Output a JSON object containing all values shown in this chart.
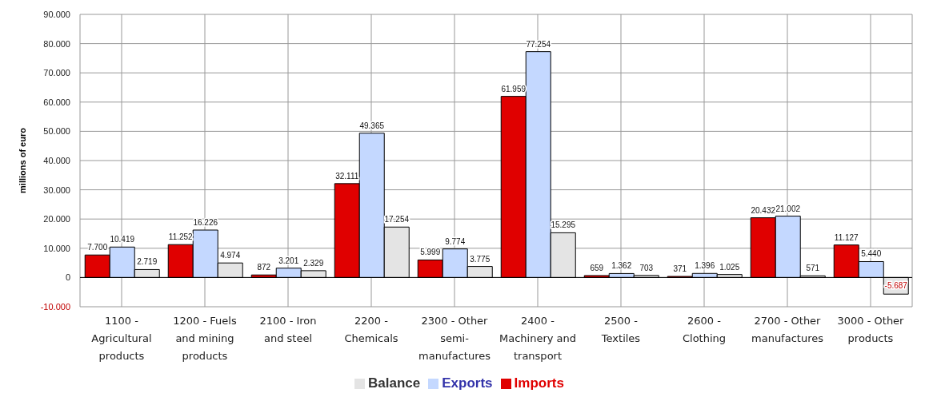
{
  "chart_data": {
    "type": "bar",
    "ylabel": "millions of euro",
    "categories": [
      "1100 - Agricultural products",
      "1200 - Fuels and mining products",
      "2100 - Iron and steel",
      "2200 - Chemicals",
      "2300 - Other semi-manufactures",
      "2400 - Machinery and transport",
      "2500 - Textiles",
      "2600 - Clothing",
      "2700 - Other manufactures",
      "3000 - Other products"
    ],
    "series": [
      {
        "name": "Imports",
        "color": "#e00000",
        "values": [
          7700,
          11252,
          872,
          32111,
          5999,
          61959,
          659,
          371,
          20432,
          11127
        ],
        "value_labels": [
          "7.700",
          "11.252",
          "872",
          "32.111",
          "5.999",
          "61.959",
          "659",
          "371",
          "20.432",
          "11.127"
        ]
      },
      {
        "name": "Exports",
        "color": "#c4d8ff",
        "values": [
          10419,
          16226,
          3201,
          49365,
          9774,
          77254,
          1362,
          1396,
          21002,
          5440
        ],
        "value_labels": [
          "10.419",
          "16.226",
          "3.201",
          "49.365",
          "9.774",
          "77.254",
          "1.362",
          "1.396",
          "21.002",
          "5.440"
        ]
      },
      {
        "name": "Balance",
        "color": "#e4e4e4",
        "values": [
          2719,
          4974,
          2329,
          17254,
          3775,
          15295,
          703,
          1025,
          571,
          -5687
        ],
        "value_labels": [
          "2.719",
          "4.974",
          "2.329",
          "17.254",
          "3.775",
          "15.295",
          "703",
          "1.025",
          "571",
          "-5.687"
        ]
      }
    ],
    "ylim": [
      -10000,
      90000
    ],
    "yticks": [
      {
        "value": -10000,
        "label": "-10.000"
      },
      0,
      {
        "value": 10000,
        "label": "10.000"
      },
      {
        "value": 20000,
        "label": "20.000"
      },
      {
        "value": 30000,
        "label": "30.000"
      },
      {
        "value": 40000,
        "label": "40.000"
      },
      {
        "value": 50000,
        "label": "50.000"
      },
      {
        "value": 60000,
        "label": "60.000"
      },
      {
        "value": 70000,
        "label": "70.000"
      },
      {
        "value": 80000,
        "label": "80.000"
      },
      {
        "value": 90000,
        "label": "90.000"
      }
    ],
    "grid": true,
    "legend": "bottom"
  }
}
